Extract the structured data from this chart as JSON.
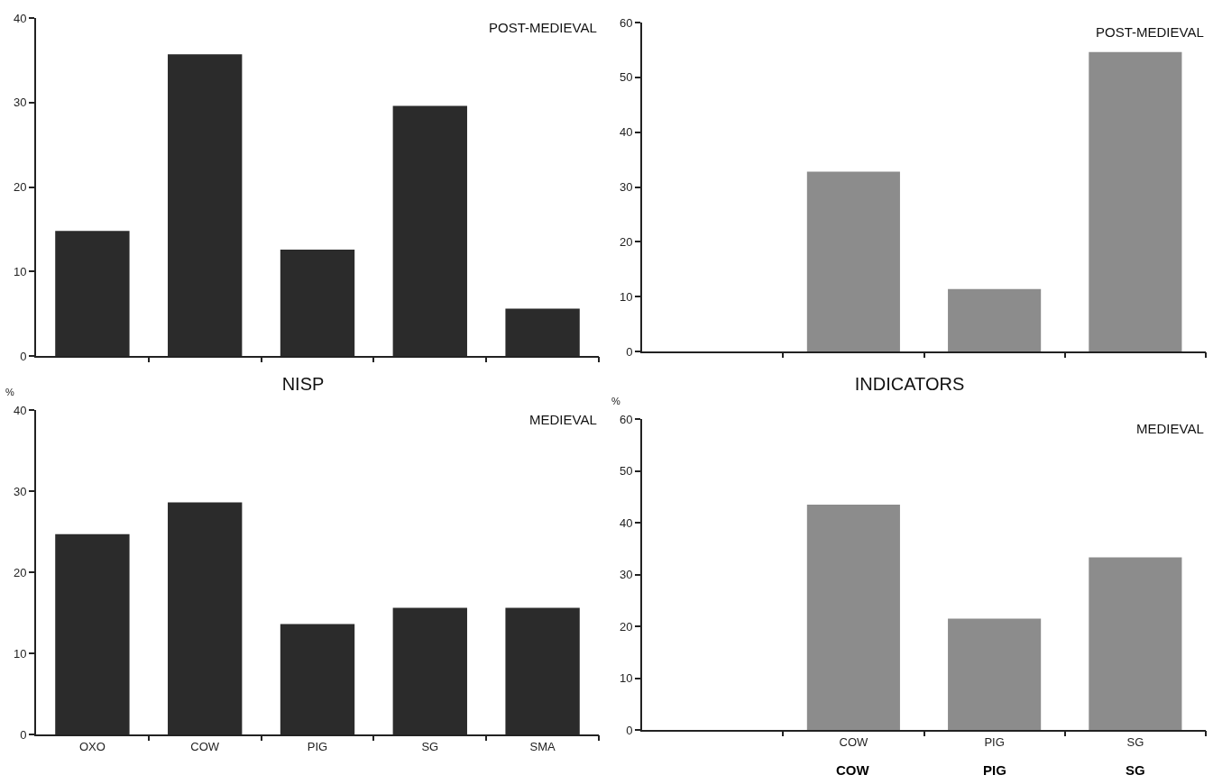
{
  "chart_data": [
    {
      "type": "bar",
      "categories": [
        null,
        null,
        null,
        null,
        null
      ],
      "values": [
        14.8,
        35.7,
        12.6,
        29.6,
        5.6
      ],
      "color": "#2b2b2b",
      "ylim": [
        0,
        40
      ],
      "yticks": [
        0,
        10,
        20,
        30,
        40
      ],
      "grid": false,
      "annotations": [
        "POST-MEDIEVAL"
      ]
    },
    {
      "type": "bar",
      "categories": [
        null,
        null,
        null,
        null
      ],
      "values": [
        null,
        32.8,
        11.4,
        54.6
      ],
      "color": "#8c8c8c",
      "ylim": [
        0,
        60
      ],
      "yticks": [
        0,
        10,
        20,
        30,
        40,
        50,
        60
      ],
      "grid": false,
      "annotations": [
        "POST-MEDIEVAL"
      ]
    },
    {
      "type": "bar",
      "title": "NISP",
      "ylabel": "%",
      "categories": [
        "OXO",
        "COW",
        "PIG",
        "SG",
        "SMA"
      ],
      "values": [
        24.7,
        28.6,
        13.6,
        15.6,
        15.6
      ],
      "color": "#2b2b2b",
      "ylim": [
        0,
        40
      ],
      "yticks": [
        0,
        10,
        20,
        30,
        40
      ],
      "grid": false,
      "annotations": [
        "MEDIEVAL"
      ]
    },
    {
      "type": "bar",
      "title": "INDICATORS",
      "ylabel": "%",
      "categories": [
        null,
        "COW",
        "PIG",
        "SG"
      ],
      "values": [
        null,
        43.5,
        21.5,
        33.3
      ],
      "color": "#8c8c8c",
      "ylim": [
        0,
        60
      ],
      "yticks": [
        0,
        10,
        20,
        30,
        40,
        50,
        60
      ],
      "grid": false,
      "annotations": [
        "MEDIEVAL",
        "COW",
        "PIG",
        "SG"
      ]
    }
  ]
}
